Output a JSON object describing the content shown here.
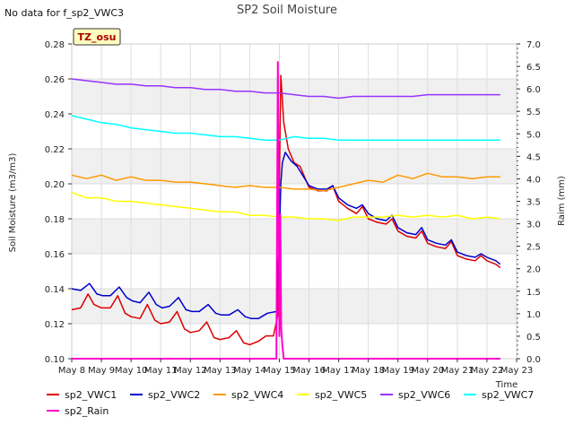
{
  "header": {
    "no_data_text": "No data for f_sp2_VWC3",
    "badge": "TZ_osu"
  },
  "chart_data": {
    "type": "line",
    "title": "SP2 Soil Moisture",
    "xlabel": "Time",
    "ylabel": "Soil Moisture (m3/m3)",
    "y2label": "Raim (mm)",
    "x_ticks": [
      "May 8",
      "May 9",
      "May 10",
      "May 11",
      "May 12",
      "May 13",
      "May 14",
      "May 15",
      "May 16",
      "May 17",
      "May 18",
      "May 19",
      "May 20",
      "May 21",
      "May 22",
      "May 23"
    ],
    "xlim": [
      0,
      15
    ],
    "ylim": [
      0.1,
      0.28
    ],
    "y_ticks": [
      "0.10",
      "0.12",
      "0.14",
      "0.16",
      "0.18",
      "0.20",
      "0.22",
      "0.24",
      "0.26",
      "0.28"
    ],
    "y2lim": [
      0.0,
      7.0
    ],
    "y2_ticks": [
      "0.0",
      "0.5",
      "1.0",
      "1.5",
      "2.0",
      "2.5",
      "3.0",
      "3.5",
      "4.0",
      "4.5",
      "5.0",
      "5.5",
      "6.0",
      "6.5",
      "7.0"
    ],
    "grid": true,
    "legend_position": "bottom",
    "series": [
      {
        "name": "sp2_VWC1",
        "color": "#dd0000",
        "axis": "left",
        "x": [
          0,
          0.3,
          0.55,
          0.75,
          1.0,
          1.3,
          1.55,
          1.8,
          2.0,
          2.3,
          2.55,
          2.8,
          3.0,
          3.3,
          3.55,
          3.8,
          4.0,
          4.3,
          4.55,
          4.8,
          5.0,
          5.3,
          5.55,
          5.8,
          6.0,
          6.3,
          6.55,
          6.8,
          6.95,
          7.0,
          7.05,
          7.15,
          7.3,
          7.5,
          7.7,
          8.0,
          8.3,
          8.6,
          8.8,
          9.0,
          9.3,
          9.6,
          9.8,
          10.0,
          10.3,
          10.6,
          10.8,
          11.0,
          11.3,
          11.6,
          11.8,
          12.0,
          12.3,
          12.6,
          12.8,
          13.0,
          13.3,
          13.6,
          13.8,
          14.0,
          14.3,
          14.45
        ],
        "y": [
          0.128,
          0.129,
          0.137,
          0.131,
          0.129,
          0.129,
          0.136,
          0.126,
          0.124,
          0.123,
          0.131,
          0.122,
          0.12,
          0.121,
          0.127,
          0.117,
          0.115,
          0.116,
          0.121,
          0.112,
          0.111,
          0.112,
          0.116,
          0.109,
          0.108,
          0.11,
          0.113,
          0.113,
          0.125,
          0.2,
          0.262,
          0.235,
          0.22,
          0.212,
          0.21,
          0.198,
          0.196,
          0.196,
          0.199,
          0.19,
          0.186,
          0.183,
          0.187,
          0.18,
          0.178,
          0.177,
          0.18,
          0.173,
          0.17,
          0.169,
          0.173,
          0.166,
          0.164,
          0.163,
          0.167,
          0.159,
          0.157,
          0.156,
          0.159,
          0.156,
          0.154,
          0.152
        ]
      },
      {
        "name": "sp2_VWC2",
        "color": "#0000cc",
        "axis": "left",
        "x": [
          0,
          0.3,
          0.6,
          0.85,
          1.05,
          1.3,
          1.6,
          1.85,
          2.05,
          2.3,
          2.6,
          2.85,
          3.05,
          3.3,
          3.6,
          3.85,
          4.05,
          4.3,
          4.6,
          4.85,
          5.05,
          5.3,
          5.6,
          5.85,
          6.05,
          6.3,
          6.6,
          6.9,
          7.0,
          7.05,
          7.1,
          7.2,
          7.4,
          7.6,
          8.0,
          8.3,
          8.6,
          8.8,
          9.0,
          9.3,
          9.6,
          9.8,
          10.0,
          10.3,
          10.6,
          10.8,
          11.0,
          11.3,
          11.6,
          11.8,
          12.0,
          12.3,
          12.6,
          12.8,
          13.0,
          13.3,
          13.6,
          13.8,
          14.0,
          14.3,
          14.45
        ],
        "y": [
          0.14,
          0.139,
          0.143,
          0.137,
          0.136,
          0.136,
          0.141,
          0.135,
          0.133,
          0.132,
          0.138,
          0.131,
          0.129,
          0.13,
          0.135,
          0.128,
          0.127,
          0.127,
          0.131,
          0.126,
          0.125,
          0.125,
          0.128,
          0.124,
          0.123,
          0.123,
          0.126,
          0.127,
          0.17,
          0.2,
          0.212,
          0.218,
          0.213,
          0.21,
          0.199,
          0.197,
          0.197,
          0.199,
          0.192,
          0.188,
          0.186,
          0.188,
          0.183,
          0.18,
          0.179,
          0.182,
          0.175,
          0.172,
          0.171,
          0.175,
          0.168,
          0.166,
          0.165,
          0.168,
          0.161,
          0.159,
          0.158,
          0.16,
          0.158,
          0.156,
          0.154
        ]
      },
      {
        "name": "sp2_VWC4",
        "color": "#ff9900",
        "axis": "left",
        "x": [
          0,
          0.5,
          1.0,
          1.5,
          2.0,
          2.5,
          3.0,
          3.5,
          4.0,
          4.5,
          5.0,
          5.5,
          6.0,
          6.5,
          7.0,
          7.5,
          8.0,
          8.5,
          9.0,
          9.5,
          10.0,
          10.5,
          11.0,
          11.5,
          12.0,
          12.5,
          13.0,
          13.5,
          14.0,
          14.45
        ],
        "y": [
          0.205,
          0.203,
          0.205,
          0.202,
          0.204,
          0.202,
          0.202,
          0.201,
          0.201,
          0.2,
          0.199,
          0.198,
          0.199,
          0.198,
          0.198,
          0.197,
          0.197,
          0.196,
          0.198,
          0.2,
          0.202,
          0.201,
          0.205,
          0.203,
          0.206,
          0.204,
          0.204,
          0.203,
          0.204,
          0.204
        ]
      },
      {
        "name": "sp2_VWC5",
        "color": "#ffff00",
        "axis": "left",
        "x": [
          0,
          0.5,
          1.0,
          1.5,
          2.0,
          2.5,
          3.0,
          3.5,
          4.0,
          4.5,
          5.0,
          5.5,
          6.0,
          6.5,
          7.0,
          7.5,
          8.0,
          8.5,
          9.0,
          9.5,
          10.0,
          10.5,
          11.0,
          11.5,
          12.0,
          12.5,
          13.0,
          13.5,
          14.0,
          14.45
        ],
        "y": [
          0.195,
          0.192,
          0.192,
          0.19,
          0.19,
          0.189,
          0.188,
          0.187,
          0.186,
          0.185,
          0.184,
          0.184,
          0.182,
          0.182,
          0.181,
          0.181,
          0.18,
          0.18,
          0.179,
          0.181,
          0.181,
          0.181,
          0.182,
          0.181,
          0.182,
          0.181,
          0.182,
          0.18,
          0.181,
          0.18
        ]
      },
      {
        "name": "sp2_VWC6",
        "color": "#9933ff",
        "axis": "left",
        "x": [
          0,
          0.5,
          1.0,
          1.5,
          2.0,
          2.5,
          3.0,
          3.5,
          4.0,
          4.5,
          5.0,
          5.5,
          6.0,
          6.5,
          7.0,
          7.5,
          8.0,
          8.5,
          9.0,
          9.5,
          10.0,
          10.5,
          11.0,
          11.5,
          12.0,
          12.5,
          13.0,
          13.5,
          14.0,
          14.45
        ],
        "y": [
          0.26,
          0.259,
          0.258,
          0.257,
          0.257,
          0.256,
          0.256,
          0.255,
          0.255,
          0.254,
          0.254,
          0.253,
          0.253,
          0.252,
          0.252,
          0.251,
          0.25,
          0.25,
          0.249,
          0.25,
          0.25,
          0.25,
          0.25,
          0.25,
          0.251,
          0.251,
          0.251,
          0.251,
          0.251,
          0.251
        ]
      },
      {
        "name": "sp2_VWC7",
        "color": "#00ffff",
        "axis": "left",
        "x": [
          0,
          0.5,
          1.0,
          1.5,
          2.0,
          2.5,
          3.0,
          3.5,
          4.0,
          4.5,
          5.0,
          5.5,
          6.0,
          6.5,
          7.0,
          7.5,
          8.0,
          8.5,
          9.0,
          9.5,
          10.0,
          10.5,
          11.0,
          11.5,
          12.0,
          12.5,
          13.0,
          13.5,
          14.0,
          14.45
        ],
        "y": [
          0.239,
          0.237,
          0.235,
          0.234,
          0.232,
          0.231,
          0.23,
          0.229,
          0.229,
          0.228,
          0.227,
          0.227,
          0.226,
          0.225,
          0.225,
          0.227,
          0.226,
          0.226,
          0.225,
          0.225,
          0.225,
          0.225,
          0.225,
          0.225,
          0.225,
          0.225,
          0.225,
          0.225,
          0.225,
          0.225
        ]
      },
      {
        "name": "sp2_Rain",
        "color": "#ff00cc",
        "axis": "right",
        "x": [
          0,
          6.85,
          6.9,
          6.95,
          7.0,
          7.03,
          7.06,
          7.1,
          7.15,
          7.2,
          14.45
        ],
        "y": [
          0,
          0,
          0,
          6.6,
          0.5,
          3.2,
          0.7,
          0.3,
          0,
          0,
          0
        ]
      }
    ]
  }
}
